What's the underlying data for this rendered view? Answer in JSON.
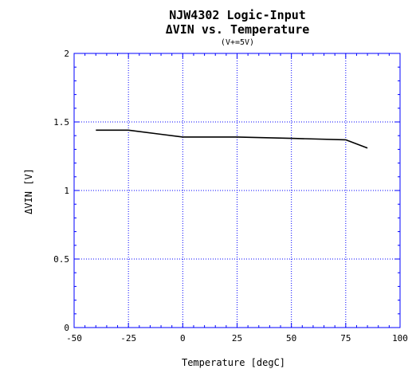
{
  "chart_data": {
    "type": "line",
    "title": "NJW4302 Logic-Input",
    "subtitle": "ΔVIN vs. Temperature",
    "condition": "(V+=5V)",
    "xlabel": "Temperature [degC]",
    "ylabel": "ΔVIN [V]",
    "xlim": [
      -50,
      100
    ],
    "ylim": [
      0,
      2
    ],
    "x_ticks": [
      "-50",
      "-25",
      "0",
      "25",
      "50",
      "75",
      "100"
    ],
    "y_ticks": [
      "0",
      "0.5",
      "1",
      "1.5",
      "2"
    ],
    "grid": true,
    "colors": {
      "grid": "#0000ff",
      "line": "#000000",
      "frame": "#0000ff"
    },
    "series": [
      {
        "x": [
          -40,
          -25,
          -10,
          0,
          25,
          50,
          75,
          85
        ],
        "y": [
          1.44,
          1.44,
          1.41,
          1.39,
          1.39,
          1.38,
          1.37,
          1.31
        ]
      }
    ]
  }
}
